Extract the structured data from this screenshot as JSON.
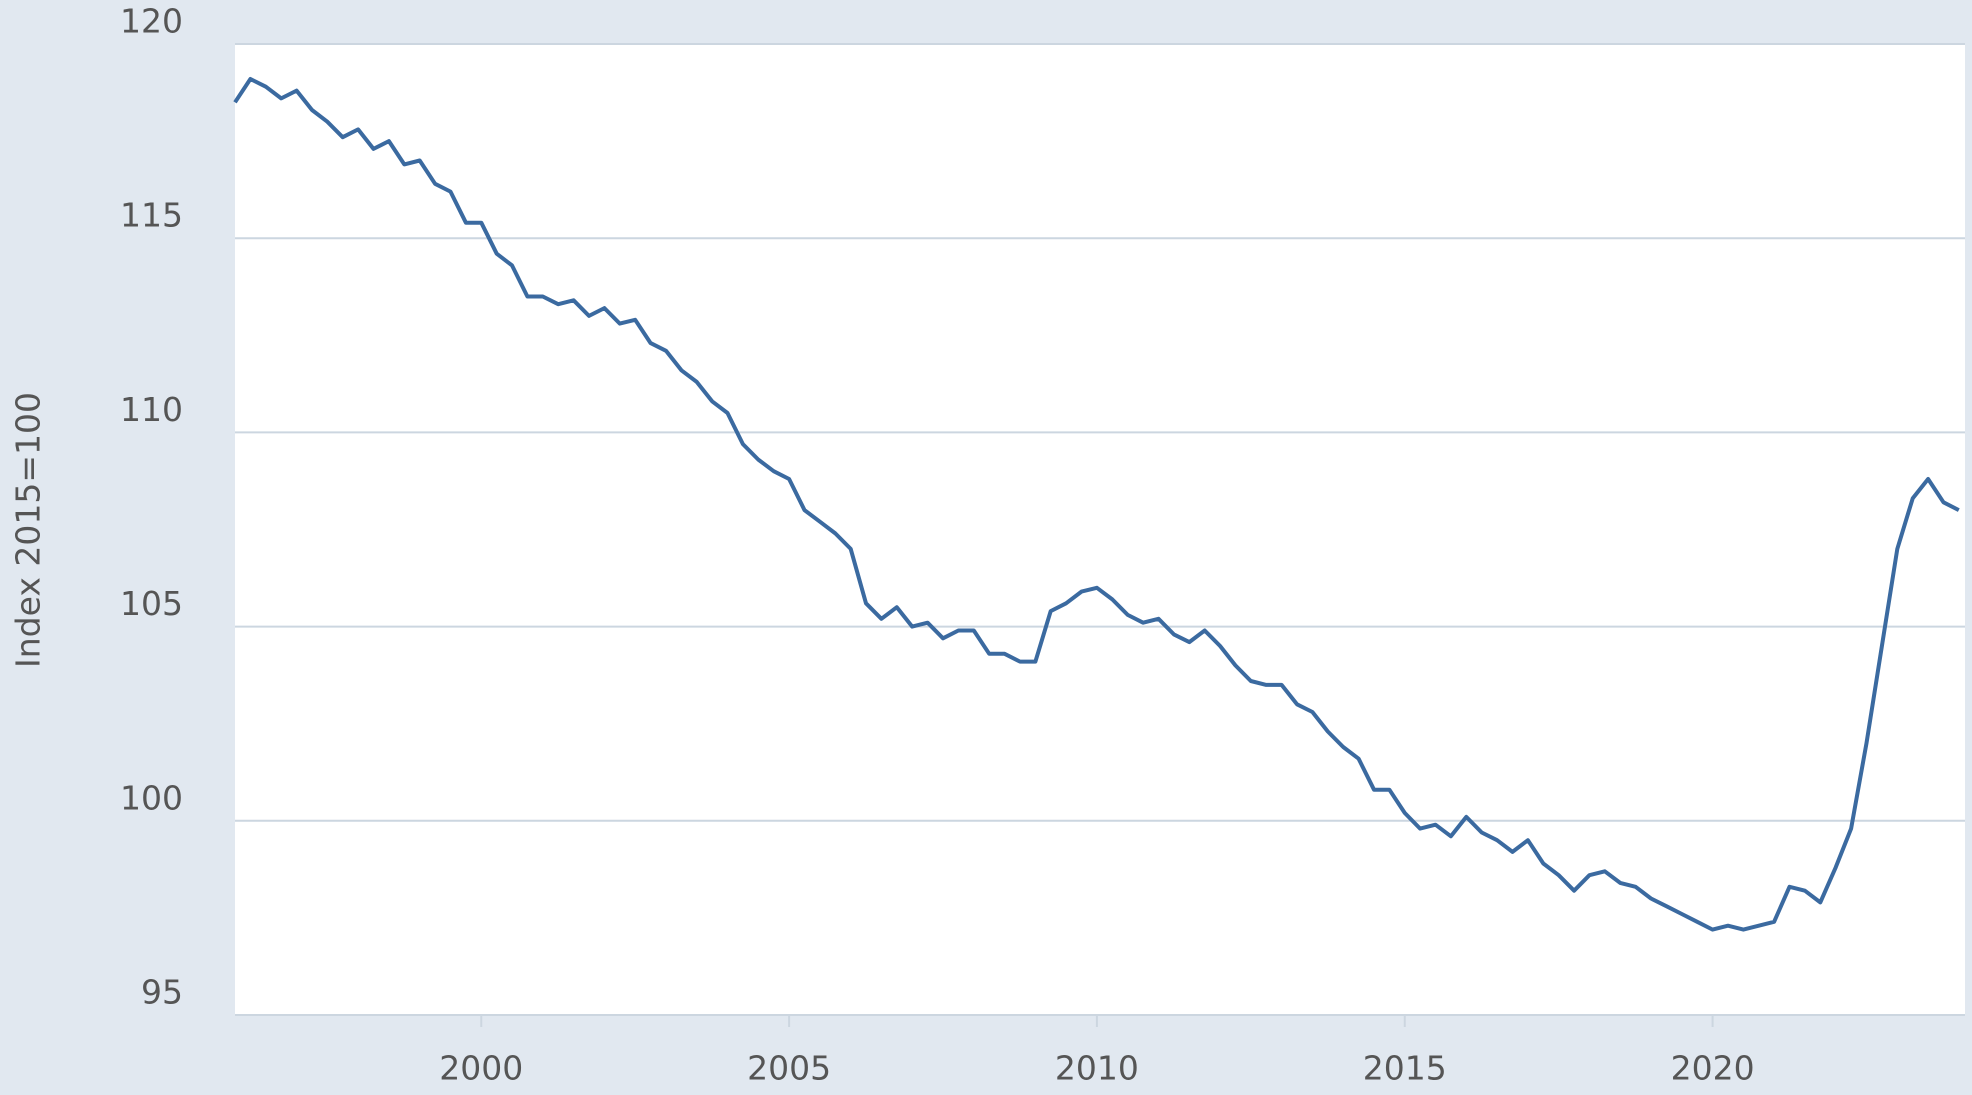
{
  "chart_data": {
    "type": "line",
    "y_axis_label": "Index 2015=100",
    "xlim": [
      1996.0,
      2024.1
    ],
    "xticks": [
      2000,
      2005,
      2010,
      2015,
      2020
    ],
    "ylim": [
      95,
      120
    ],
    "yticks": [
      95,
      100,
      105,
      110,
      115,
      120
    ],
    "grid": true,
    "x": [
      1996.0,
      1996.25,
      1996.5,
      1996.75,
      1997.0,
      1997.25,
      1997.5,
      1997.75,
      1998.0,
      1998.25,
      1998.5,
      1998.75,
      1999.0,
      1999.25,
      1999.5,
      1999.75,
      2000.0,
      2000.25,
      2000.5,
      2000.75,
      2001.0,
      2001.25,
      2001.5,
      2001.75,
      2002.0,
      2002.25,
      2002.5,
      2002.75,
      2003.0,
      2003.25,
      2003.5,
      2003.75,
      2004.0,
      2004.25,
      2004.5,
      2004.75,
      2005.0,
      2005.25,
      2005.5,
      2005.75,
      2006.0,
      2006.25,
      2006.5,
      2006.75,
      2007.0,
      2007.25,
      2007.5,
      2007.75,
      2008.0,
      2008.25,
      2008.5,
      2008.75,
      2009.0,
      2009.25,
      2009.5,
      2009.75,
      2010.0,
      2010.25,
      2010.5,
      2010.75,
      2011.0,
      2011.25,
      2011.5,
      2011.75,
      2012.0,
      2012.25,
      2012.5,
      2012.75,
      2013.0,
      2013.25,
      2013.5,
      2013.75,
      2014.0,
      2014.25,
      2014.5,
      2014.75,
      2015.0,
      2015.25,
      2015.5,
      2015.75,
      2016.0,
      2016.25,
      2016.5,
      2016.75,
      2017.0,
      2017.25,
      2017.5,
      2017.75,
      2018.0,
      2018.25,
      2018.5,
      2018.75,
      2019.0,
      2019.25,
      2019.5,
      2019.75,
      2020.0,
      2020.25,
      2020.5,
      2020.75,
      2021.0,
      2021.25,
      2021.5,
      2021.75,
      2022.0,
      2022.25,
      2022.5,
      2022.75,
      2023.0,
      2023.25,
      2023.5,
      2023.75,
      2024.0
    ],
    "series": [
      {
        "color": "#3b6aa0",
        "values": [
          118.5,
          119.1,
          118.9,
          118.6,
          118.8,
          118.3,
          118.0,
          117.6,
          117.8,
          117.3,
          117.5,
          116.9,
          117.0,
          116.4,
          116.2,
          115.4,
          115.4,
          114.6,
          114.3,
          113.5,
          113.5,
          113.3,
          113.4,
          113.0,
          113.2,
          112.8,
          112.9,
          112.3,
          112.1,
          111.6,
          111.3,
          110.8,
          110.5,
          109.7,
          109.3,
          109.0,
          108.8,
          108.0,
          107.7,
          107.4,
          107.0,
          105.6,
          105.2,
          105.5,
          105.0,
          105.1,
          104.7,
          104.9,
          104.9,
          104.3,
          104.3,
          104.1,
          104.1,
          105.4,
          105.6,
          105.9,
          106.0,
          105.7,
          105.3,
          105.1,
          105.2,
          104.8,
          104.6,
          104.9,
          104.5,
          104.0,
          103.6,
          103.5,
          103.5,
          103.0,
          102.8,
          102.3,
          101.9,
          101.6,
          100.8,
          100.8,
          100.2,
          99.8,
          99.9,
          99.6,
          100.1,
          99.7,
          99.5,
          99.2,
          99.5,
          98.9,
          98.6,
          98.2,
          98.6,
          98.7,
          98.4,
          98.3,
          98.0,
          97.8,
          97.6,
          97.4,
          97.2,
          97.3,
          97.2,
          97.3,
          97.4,
          98.3,
          98.2,
          97.9,
          98.8,
          99.8,
          102.0,
          104.5,
          107.0,
          108.3,
          108.8,
          108.2,
          108.0
        ]
      }
    ]
  }
}
